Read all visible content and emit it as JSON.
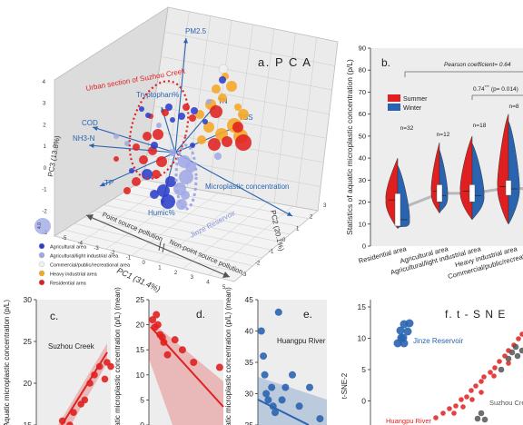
{
  "pca": {
    "panel_label": "a. P C A",
    "axis_pc1": "PC1 (31.4%)",
    "axis_pc2": "PC2 (20.1%)",
    "axis_pc3": "PC3 (13.8%)",
    "pc1_ticks": [
      "-5",
      "-4",
      "-3",
      "-2",
      "-1",
      "0",
      "1",
      "2",
      "3",
      "4",
      "5"
    ],
    "pc2_ticks": [
      "-3",
      "-2",
      "-1",
      "0",
      "1",
      "2",
      "3"
    ],
    "pc3_ticks": [
      "-3",
      "-2",
      "-1",
      "0",
      "1",
      "2",
      "3",
      "4"
    ],
    "vectors": [
      "PM2.5",
      "Tryptophan%",
      "TN",
      "TSS",
      "COD",
      "NH3-N",
      "TP",
      "Humic%",
      "Microplastic concentration"
    ],
    "annot_suzhou": "Urban section of Suzhou Creek",
    "annot_jinze": "Jinze Reservoir",
    "point_source": "Point source pollution",
    "nonpoint_source": "Non-point source pollution",
    "size_legend_value": "4.0",
    "legend": [
      {
        "label": "Agricultural area",
        "color": "#2b3fc9"
      },
      {
        "label": "Agricultural/light industrial area",
        "color": "#9fa8e6"
      },
      {
        "label": "Commercial/public/recreational area",
        "color": "#f2f2f2"
      },
      {
        "label": "Heavy industrial area",
        "color": "#f5a623"
      },
      {
        "label": "Residential area",
        "color": "#e02020"
      }
    ]
  },
  "chart_data": [
    {
      "type": "violin",
      "panel_label": "b.",
      "ylabel": "Statistics of aquatic microplastic concentration (p/L)",
      "ylim": [
        0,
        90
      ],
      "yticks": [
        "0",
        "10",
        "20",
        "30",
        "40",
        "50",
        "60",
        "70",
        "80",
        "90"
      ],
      "categories": [
        "Residential area",
        "Agricultural area",
        "Agricultural/light industrial area",
        "Heavy industrial area",
        "Commercial/public/recreational area"
      ],
      "n_labels": [
        "n=32",
        "n=12",
        "n=18",
        "n=8"
      ],
      "series": [
        {
          "name": "Summer",
          "color": "#e02020",
          "medians": [
            21,
            25,
            25,
            27,
            27
          ]
        },
        {
          "name": "Winter",
          "color": "#2a64b0",
          "medians": [
            12,
            23,
            23,
            26,
            24
          ]
        }
      ],
      "pearson": "Pearson coefficient= 0.64",
      "stat": "0.74",
      "stat_sup": "***",
      "stat_p": "(p= 0.014)"
    },
    {
      "type": "scatter",
      "panel_label": "c.",
      "annotation": "Suzhou Creek",
      "ylabel": "Aquatic microplastic concentration (p/L)",
      "ylim": [
        15,
        30
      ],
      "yticks": [
        "15",
        "20",
        "25",
        "30"
      ],
      "color": "#e02020",
      "points": [
        [
          0.35,
          15.5
        ],
        [
          0.45,
          15.0
        ],
        [
          0.5,
          16.5
        ],
        [
          0.6,
          17.5
        ],
        [
          0.65,
          18.0
        ],
        [
          0.72,
          20.0
        ],
        [
          0.78,
          21.0
        ],
        [
          0.85,
          22.0
        ],
        [
          0.92,
          20.5
        ],
        [
          0.95,
          22.5
        ],
        [
          1.0,
          22.0
        ]
      ]
    },
    {
      "type": "scatter",
      "panel_label": "d.",
      "ylabel": "Aquatic microplastic concentration (p/L) (mean)",
      "ylim": [
        0,
        25
      ],
      "yticks": [
        "0",
        "5",
        "10",
        "15",
        "20",
        "25"
      ],
      "color": "#e02020",
      "points": [
        [
          0.05,
          21.0
        ],
        [
          0.08,
          19.5
        ],
        [
          0.1,
          22.0
        ],
        [
          0.12,
          20.0
        ],
        [
          0.15,
          18.0
        ],
        [
          0.18,
          17.5
        ],
        [
          0.2,
          16.5
        ],
        [
          0.25,
          14.0
        ],
        [
          0.35,
          17.0
        ],
        [
          0.45,
          15.0
        ],
        [
          0.6,
          12.5
        ],
        [
          0.95,
          11.5
        ]
      ]
    },
    {
      "type": "scatter",
      "panel_label": "e.",
      "annotation": "Huangpu River",
      "ylabel": "Aquatic microplastic concentration (p/L) (mean)",
      "ylim": [
        25,
        45
      ],
      "yticks": [
        "25",
        "30",
        "35",
        "40",
        "45"
      ],
      "color": "#2a64b0",
      "points": [
        [
          0.05,
          40.0
        ],
        [
          0.08,
          36.0
        ],
        [
          0.1,
          33.0
        ],
        [
          0.12,
          30.0
        ],
        [
          0.15,
          29.0
        ],
        [
          0.2,
          31.0
        ],
        [
          0.22,
          28.0
        ],
        [
          0.25,
          27.0
        ],
        [
          0.3,
          43.0
        ],
        [
          0.35,
          29.0
        ],
        [
          0.4,
          31.0
        ],
        [
          0.5,
          33.0
        ],
        [
          0.6,
          28.0
        ],
        [
          0.75,
          31.0
        ],
        [
          0.9,
          26.0
        ]
      ]
    },
    {
      "type": "scatter",
      "panel_label": "f. t - S N E",
      "ylabel": "t-SNE-2",
      "ylim": [
        -5,
        15
      ],
      "yticks": [
        "-5",
        "0",
        "5",
        "10",
        "15"
      ],
      "clusters": [
        {
          "name": "Jinze Reservoir",
          "color": "#2a64b0"
        },
        {
          "name": "Huangpu River",
          "color": "#e02020"
        },
        {
          "name": "Suzhou Creek",
          "color": "#555555"
        }
      ]
    }
  ]
}
